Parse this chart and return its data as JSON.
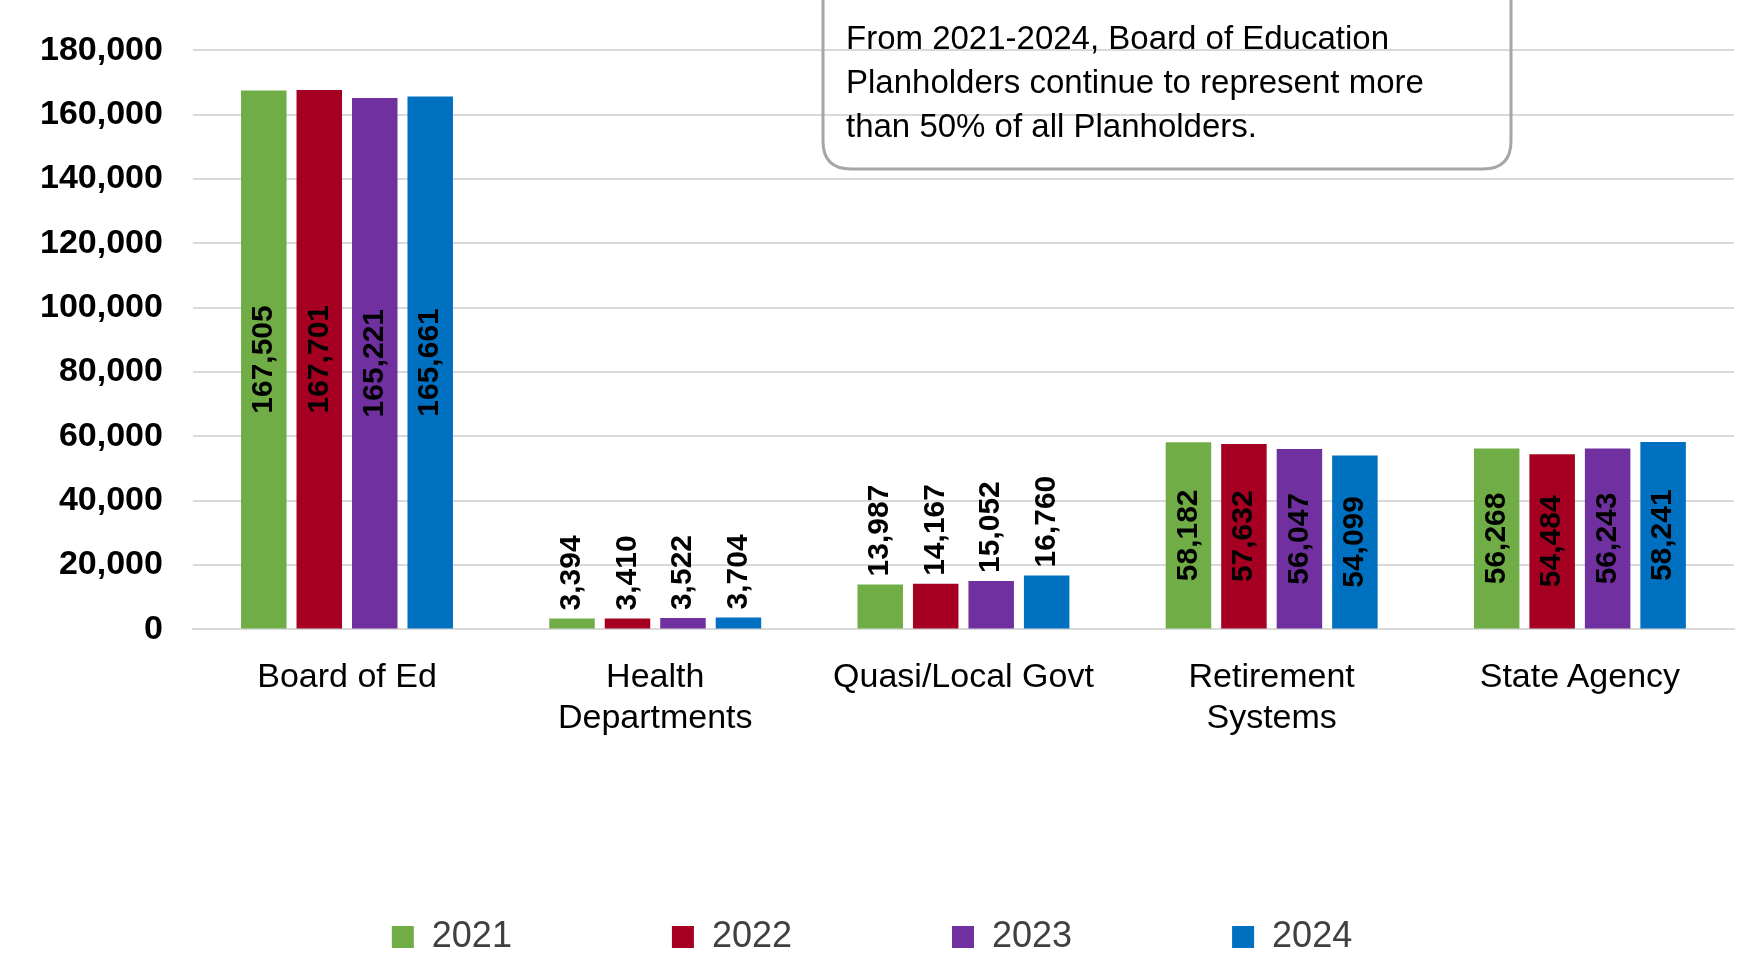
{
  "chart_data": {
    "type": "bar",
    "categories": [
      "Board of Ed",
      "Health Departments",
      "Quasi/Local Govt",
      "Retirement Systems",
      "State Agency"
    ],
    "series": [
      {
        "name": "2021",
        "color": "#70ad47",
        "values": [
          167505,
          3394,
          13987,
          58182,
          56268
        ],
        "value_labels": [
          "167,505",
          "3,394",
          "13,987",
          "58,182",
          "56,268"
        ]
      },
      {
        "name": "2022",
        "color": "#a50021",
        "values": [
          167701,
          3410,
          14167,
          57632,
          54484
        ],
        "value_labels": [
          "167,701",
          "3,410",
          "14,167",
          "57,632",
          "54,484"
        ]
      },
      {
        "name": "2023",
        "color": "#7030a0",
        "values": [
          165221,
          3522,
          15052,
          56047,
          56243
        ],
        "value_labels": [
          "165,221",
          "3,522",
          "15,052",
          "56,047",
          "56,243"
        ]
      },
      {
        "name": "2024",
        "color": "#0070c0",
        "values": [
          165661,
          3704,
          16760,
          54099,
          58241
        ],
        "value_labels": [
          "165,661",
          "3,704",
          "16,760",
          "54,099",
          "58,241"
        ]
      }
    ],
    "ylim": [
      0,
      180000
    ],
    "yticks": [
      0,
      {
        "value": 20000,
        "label": "20,000"
      },
      {
        "value": 40000,
        "label": "40,000"
      },
      {
        "value": 60000,
        "label": "60,000"
      },
      {
        "value": 80000,
        "label": "80,000"
      },
      {
        "value": 100000,
        "label": "100,000"
      },
      {
        "value": 120000,
        "label": "120,000"
      },
      {
        "value": 140000,
        "label": "140,000"
      },
      {
        "value": 160000,
        "label": "160,000"
      },
      {
        "value": 180000,
        "label": "180,000"
      }
    ],
    "grid": "y",
    "legend": "bottom",
    "annotations": [
      "From 2021-2024, Board of Education Planholders continue to represent more than 50% of all Planholders."
    ]
  }
}
